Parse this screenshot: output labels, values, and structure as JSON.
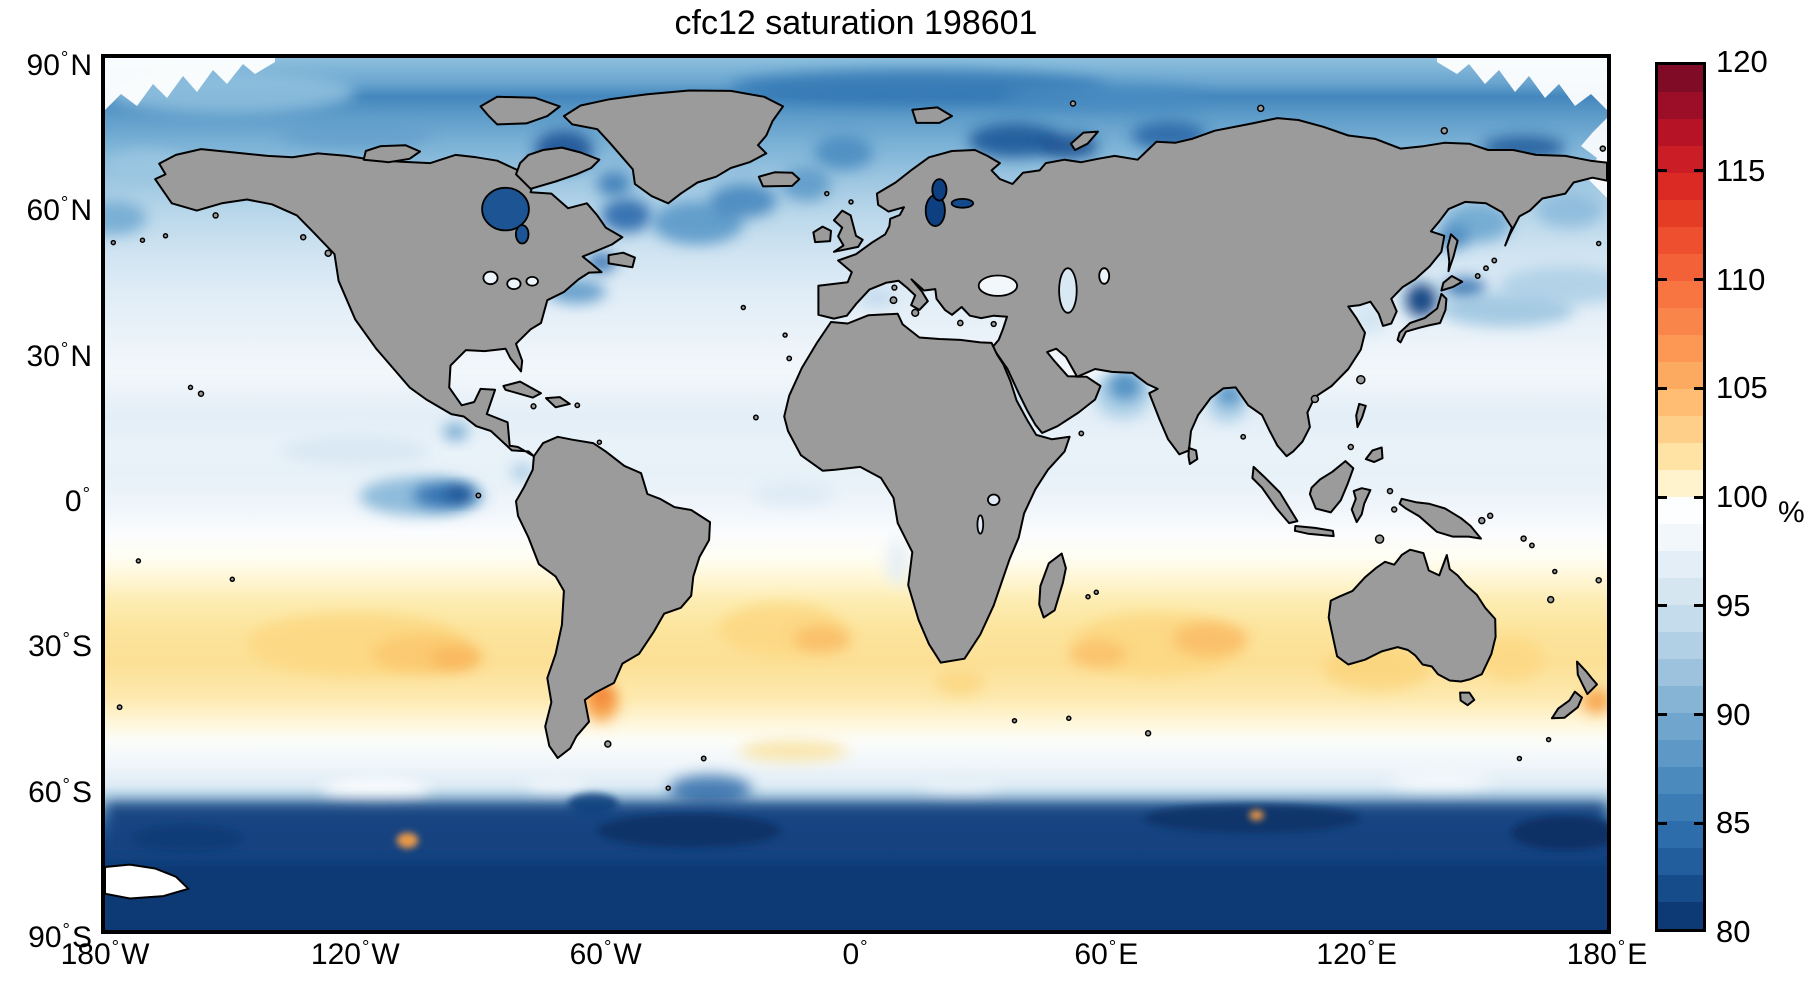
{
  "title": "cfc12 saturation 198601",
  "axes": {
    "y_ticks": [
      "90°N",
      "60°N",
      "30°N",
      "0°",
      "30°S",
      "60°S",
      "90°S"
    ],
    "x_ticks": [
      "180°W",
      "120°W",
      "60°W",
      "0°",
      "60°E",
      "120°E",
      "180°E"
    ]
  },
  "colorbar": {
    "unit": "%",
    "min": 80,
    "max": 120,
    "tick_labels": [
      "120",
      "115",
      "110",
      "105",
      "100",
      "95",
      "90",
      "85",
      "80"
    ],
    "segment_colors": [
      "#7f0b26",
      "#9c0e27",
      "#b61327",
      "#cb1d26",
      "#da2a23",
      "#e53c26",
      "#ed4f2f",
      "#f36138",
      "#f87441",
      "#fa854a",
      "#fc9754",
      "#fdaa61",
      "#febd72",
      "#fecf88",
      "#fee3a4",
      "#fef3cd",
      "#fdfeff",
      "#f2f7fb",
      "#e4eef6",
      "#d5e6f1",
      "#c4dcec",
      "#b1d0e5",
      "#9cc2dd",
      "#86b4d5",
      "#70a5cd",
      "#5d98c6",
      "#4b8abd",
      "#3b7cb4",
      "#2d6dac",
      "#225d9e",
      "#174c8b",
      "#0d3a74"
    ]
  },
  "chart_data": {
    "type": "heatmap",
    "subtype": "global-map",
    "title": "cfc12 saturation 198601",
    "variable": "CFC-12 saturation",
    "time": "198601",
    "units": "%",
    "projection": "equirectangular, lon -180..180 (x), lat -90..90 (y)",
    "value_range": [
      80,
      120
    ],
    "colormap": "RdYlBu reversed, 32 discrete levels (1.25% per level), white at 100%",
    "land_color": "#9b9b9b",
    "latitude_profile": {
      "lat": [
        85,
        75,
        65,
        55,
        45,
        35,
        25,
        15,
        5,
        0,
        -5,
        -15,
        -25,
        -30,
        -35,
        -45,
        -52,
        -58,
        -62,
        -67,
        -72
      ],
      "saturation_pct": [
        90,
        89,
        92,
        94,
        96,
        97,
        98.5,
        96.5,
        97.5,
        96,
        98,
        100,
        102.5,
        103.5,
        103,
        101.5,
        100,
        97.5,
        95,
        84,
        81
      ]
    },
    "features": [
      {
        "name": "equatorial-east-pacific-upwelling",
        "lon": -100,
        "lat": 0,
        "value_pct": 87
      },
      {
        "name": "hudson-bay",
        "lon": -85,
        "lat": 58,
        "value_pct": 83
      },
      {
        "name": "baffin-bay-labrador-sea",
        "lon": -60,
        "lat": 64,
        "value_pct": 84
      },
      {
        "name": "north-atlantic-subpolar-gyre",
        "lon": -35,
        "lat": 57,
        "value_pct": 90
      },
      {
        "name": "baltic-sea",
        "lon": 19,
        "lat": 60,
        "value_pct": 80
      },
      {
        "name": "barents-kara-seas",
        "lon": 45,
        "lat": 72,
        "value_pct": 84
      },
      {
        "name": "sea-of-japan",
        "lon": 135,
        "lat": 40,
        "value_pct": 81
      },
      {
        "name": "kuroshio-oyashio-region",
        "lon": 150,
        "lat": 40,
        "value_pct": 90
      },
      {
        "name": "bering-okhotsk-seas",
        "lon": 175,
        "lat": 57,
        "value_pct": 91
      },
      {
        "name": "northern-arabian-sea",
        "lon": 64,
        "lat": 21,
        "value_pct": 90
      },
      {
        "name": "northern-bay-of-bengal",
        "lon": 89,
        "lat": 19,
        "value_pct": 91
      },
      {
        "name": "mediterranean-sea",
        "lon": 15,
        "lat": 36,
        "value_pct": 97
      },
      {
        "name": "southern-subtropical-gyre-band",
        "lon": -110,
        "lat": -31,
        "value_pct": 104
      },
      {
        "name": "patagonian-shelf-maximum",
        "lon": -61,
        "lat": -43,
        "value_pct": 108
      },
      {
        "name": "east-of-new-zealand-maximum",
        "lon": 177,
        "lat": -43,
        "value_pct": 107
      },
      {
        "name": "circumpolar-100pct-band",
        "lon": 0,
        "lat": -52,
        "value_pct": 100
      },
      {
        "name": "antarctic-coastal-band",
        "lon": 0,
        "lat": -68,
        "value_pct": 81
      },
      {
        "name": "amundsen-coast-orange-spot",
        "lon": -107,
        "lat": -71,
        "value_pct": 106
      },
      {
        "name": "ross-sea-white-area",
        "lon": -165,
        "lat": -79,
        "value_pct": 100
      }
    ]
  }
}
